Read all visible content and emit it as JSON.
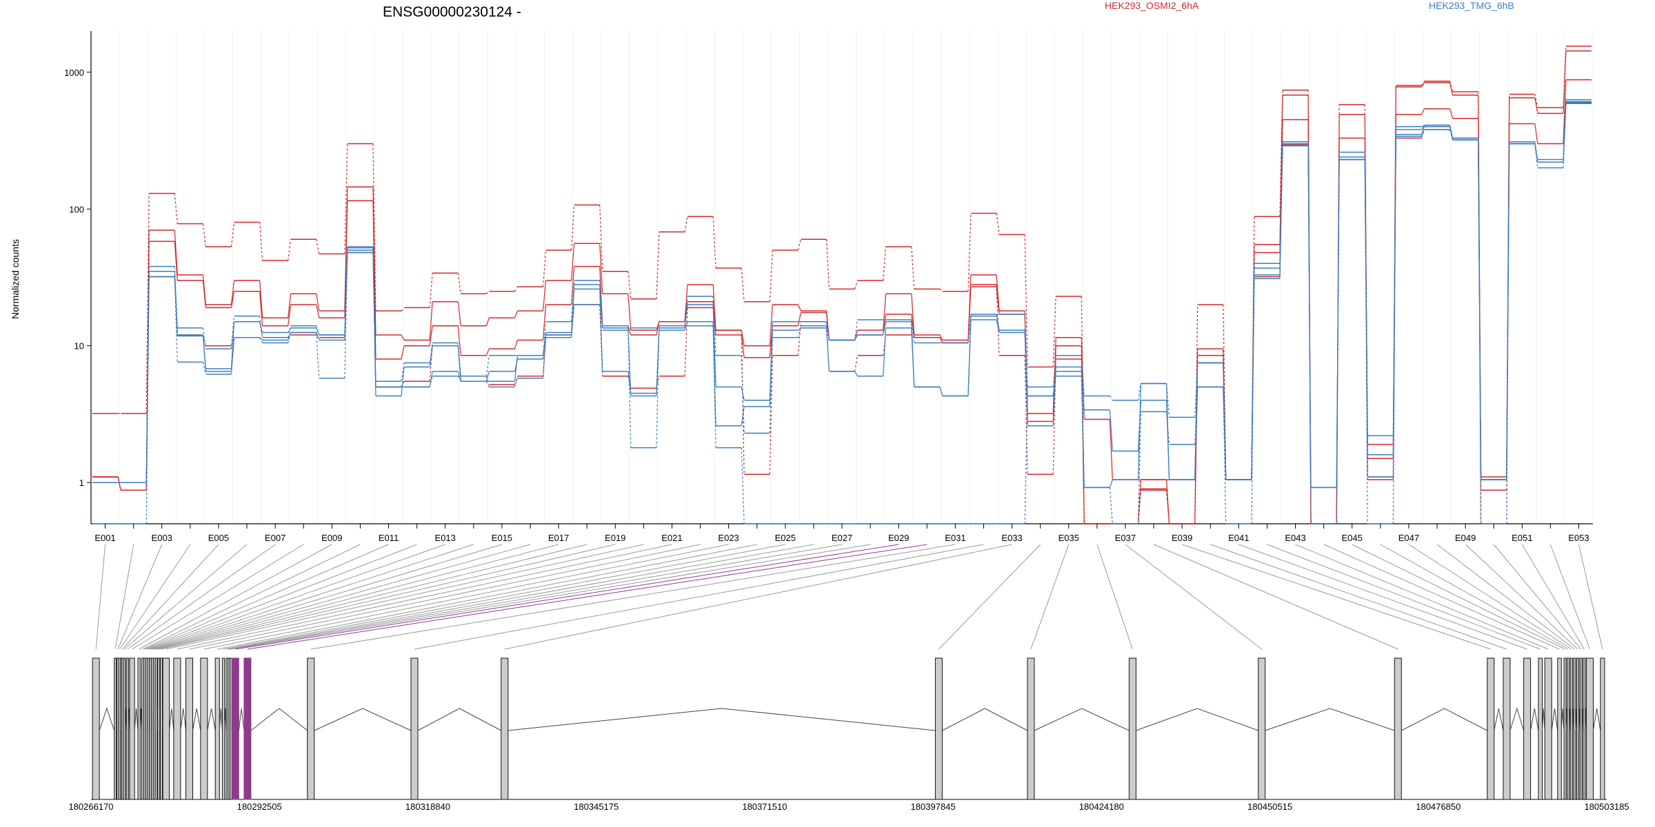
{
  "chart_data": {
    "type": "line",
    "title": "ENSG00000230124 -",
    "ylabel": "Normalized counts",
    "yscale": "log",
    "ylim": [
      0.5,
      2000
    ],
    "yticks": [
      {
        "label": "1",
        "value": 1
      },
      {
        "label": "10",
        "value": 10
      },
      {
        "label": "100",
        "value": 100
      },
      {
        "label": "1000",
        "value": 1000
      }
    ],
    "categories": [
      "E001",
      "E002",
      "E003",
      "E004",
      "E005",
      "E006",
      "E007",
      "E008",
      "E009",
      "E010",
      "E011",
      "E012",
      "E013",
      "E014",
      "E015",
      "E016",
      "E017",
      "E018",
      "E019",
      "E020",
      "E021",
      "E022",
      "E023",
      "E024",
      "E025",
      "E026",
      "E027",
      "E028",
      "E029",
      "E030",
      "E031",
      "E032",
      "E033",
      "E034",
      "E035",
      "E036",
      "E037",
      "E038",
      "E039",
      "E040",
      "E041",
      "E042",
      "E043",
      "E044",
      "E045",
      "E046",
      "E047",
      "E048",
      "E049",
      "E050",
      "E051",
      "E052",
      "E053"
    ],
    "x_tick_labels": [
      "E001",
      "E003",
      "E005",
      "E007",
      "E009",
      "E011",
      "E013",
      "E015",
      "E017",
      "E019",
      "E021",
      "E023",
      "E025",
      "E027",
      "E029",
      "E031",
      "E033",
      "E035",
      "E037",
      "E039",
      "E041",
      "E043",
      "E045",
      "E047",
      "E049",
      "E051",
      "E053"
    ],
    "legend": [
      {
        "name": "HEK293_OSMI2_6hA",
        "color": "#d62728"
      },
      {
        "name": "HEK293_TMG_6hB",
        "color": "#3a7fc1"
      }
    ],
    "series": [
      {
        "group": "HEK293_OSMI2_6hA",
        "color": "#d62728",
        "dash": true,
        "values": [
          3.2,
          3.2,
          130,
          78,
          53,
          80,
          42,
          60,
          47,
          300,
          18,
          19,
          34,
          24,
          25,
          27,
          50,
          107,
          35,
          22,
          68,
          88,
          37,
          21,
          50,
          60,
          26,
          30,
          53,
          26,
          25,
          93,
          65,
          7,
          23,
          0.5,
          0.5,
          0.9,
          0.5,
          20,
          1.05,
          88,
          740,
          0.5,
          580,
          1.1,
          800,
          860,
          720,
          0.5,
          690,
          550,
          1550
        ]
      },
      {
        "group": "HEK293_OSMI2_6hA",
        "color": "#d62728",
        "dash": false,
        "values": [
          1.1,
          0.88,
          70,
          33,
          20,
          30,
          16,
          24,
          18,
          145,
          12,
          11,
          21,
          14,
          16,
          18,
          30,
          56,
          24,
          13,
          15,
          28,
          13,
          10,
          20,
          18,
          11,
          13,
          24,
          12,
          11,
          33,
          18,
          3.2,
          11.5,
          2.9,
          1.05,
          1.05,
          1.05,
          9.5,
          1.05,
          55,
          680,
          0.5,
          490,
          1.5,
          780,
          840,
          680,
          1.1,
          650,
          500,
          1430
        ]
      },
      {
        "group": "HEK293_OSMI2_6hA",
        "color": "#d62728",
        "dash": false,
        "values": [
          1.1,
          0.88,
          58,
          30,
          19,
          25,
          14,
          20,
          16,
          115,
          8,
          10,
          14,
          8.5,
          9.5,
          11,
          20,
          38,
          14,
          12,
          15,
          21,
          12,
          8.2,
          14,
          17.5,
          11,
          12,
          17,
          11.5,
          10.5,
          27,
          17,
          2.8,
          10,
          0.5,
          0.5,
          1.05,
          0.5,
          7.5,
          1.05,
          48,
          450,
          0.5,
          330,
          1.9,
          490,
          540,
          460,
          1.05,
          420,
          300,
          880
        ]
      },
      {
        "group": "HEK293_OSMI2_6hA",
        "color": "#d62728",
        "dash": true,
        "values": [
          1.1,
          0.88,
          32,
          12,
          10,
          15,
          11.5,
          12,
          11.5,
          48,
          5,
          5.5,
          10,
          6,
          5.2,
          6,
          12,
          20,
          6,
          4.9,
          6,
          19,
          13,
          1.15,
          8.5,
          15,
          6.5,
          8.5,
          12,
          11.5,
          10.5,
          28,
          8.5,
          1.15,
          8,
          0.5,
          0.5,
          0.88,
          0.5,
          8.5,
          1.05,
          32,
          295,
          0.5,
          230,
          1.05,
          330,
          380,
          330,
          0.88,
          300,
          220,
          600
        ]
      },
      {
        "group": "HEK293_TMG_6hB",
        "color": "#3a7fc1",
        "dash": true,
        "values": [
          1,
          1,
          38,
          13.5,
          9.5,
          16.5,
          11.5,
          14,
          12,
          53,
          5.5,
          7.5,
          10.5,
          6,
          8.5,
          8.5,
          15,
          30,
          13,
          13.5,
          14,
          23,
          8.5,
          2.3,
          11.5,
          14,
          11,
          15.5,
          15.5,
          10.5,
          10.5,
          16.5,
          17,
          5,
          8.5,
          4.3,
          4,
          5.3,
          3,
          7.5,
          1.05,
          40,
          310,
          0.5,
          260,
          1.1,
          400,
          410,
          330,
          1.05,
          310,
          230,
          630
        ]
      },
      {
        "group": "HEK293_TMG_6hB",
        "color": "#3a7fc1",
        "dash": false,
        "values": [
          1,
          1,
          35,
          12,
          6.8,
          15,
          12.5,
          13.5,
          12,
          52,
          4.3,
          7,
          10,
          5.5,
          6.5,
          8,
          12.5,
          28,
          13.5,
          4.3,
          13.5,
          20,
          5,
          4,
          15,
          15,
          11,
          12,
          15,
          5,
          4.3,
          17,
          13,
          2.6,
          7,
          0.92,
          1.05,
          5.3,
          1.05,
          7.5,
          1.05,
          37,
          300,
          0.92,
          240,
          2.2,
          380,
          410,
          330,
          1.05,
          300,
          220,
          610
        ]
      },
      {
        "group": "HEK293_TMG_6hB",
        "color": "#3a7fc1",
        "dash": false,
        "values": [
          1,
          1,
          32,
          11.8,
          6.5,
          11.5,
          11,
          12.5,
          11,
          50,
          5,
          5,
          6.5,
          5.5,
          5.5,
          8.5,
          12,
          26,
          6.5,
          4.5,
          13,
          15,
          2.6,
          3.6,
          13,
          13.5,
          6.5,
          6,
          13.5,
          5,
          4.3,
          15.5,
          12.5,
          4.3,
          6.5,
          3.4,
          1.7,
          4,
          1.05,
          5,
          1.05,
          33,
          290,
          0.92,
          230,
          1.6,
          350,
          400,
          320,
          1.05,
          300,
          220,
          600
        ]
      },
      {
        "group": "HEK293_TMG_6hB",
        "color": "#3a7fc1",
        "dash": true,
        "values": [
          0.5,
          0.5,
          32,
          7.6,
          6.2,
          11.5,
          10.5,
          12.5,
          5.8,
          48,
          5,
          5,
          6,
          5.5,
          5,
          5.8,
          11.5,
          20,
          14,
          1.8,
          14,
          14,
          1.8,
          0.5,
          0.5,
          0.5,
          0.5,
          0.5,
          0.5,
          0.5,
          0.5,
          0.5,
          0.5,
          4.3,
          6,
          0.92,
          0.5,
          3.3,
          1.9,
          5,
          0.5,
          31,
          290,
          0.5,
          230,
          0.5,
          340,
          380,
          320,
          0.5,
          300,
          200,
          590
        ]
      }
    ],
    "gene_model": {
      "genomic_axis_labels": [
        "180266170",
        "180292505",
        "180318840",
        "180345175",
        "180371510",
        "180397845",
        "180424180",
        "180450515",
        "180476850",
        "180503185"
      ],
      "genomic_range": [
        180266170,
        180503185
      ],
      "exon_starts": [
        180266400,
        180269800,
        180270200,
        180270500,
        180270900,
        180271200,
        180271700,
        180272200,
        180273500,
        180274100,
        180274400,
        180274700,
        180275000,
        180275300,
        180275600,
        180275900,
        180276200,
        180276600,
        180277000,
        180277400,
        180279100,
        180281000,
        180283300,
        180285600,
        180286700,
        180287300,
        180287600,
        180287900,
        180288200,
        180290100,
        180300000,
        180316200,
        180330300,
        180398200,
        180412600,
        180428500,
        180448700,
        180470000,
        180484500,
        180487000,
        180490200,
        180492500,
        180493500,
        180495500,
        180496500,
        180497000,
        180497500,
        180498000,
        180498500,
        180499000,
        180499500,
        180500000,
        180502200
      ],
      "highlighted_exons": [
        28,
        29
      ],
      "highlight_color": "#8e3a8e"
    }
  }
}
